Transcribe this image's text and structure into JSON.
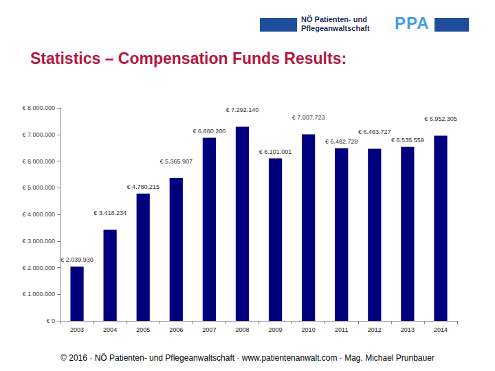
{
  "header": {
    "logo_text": [
      "NÖ Patienten- und",
      "Pflegeanwaltschaft"
    ],
    "logo_mark": "PPA"
  },
  "title": "Statistics – Compensation Funds Results:",
  "footer": "© 2016 · NÖ Patienten- und Pflegeanwaltschaft · www.patientenanwalt.com · Mag. Michael Prunbauer",
  "chart_data": {
    "type": "bar",
    "categories": [
      "2003",
      "2004",
      "2005",
      "2006",
      "2007",
      "2008",
      "2009",
      "2010",
      "2011",
      "2012",
      "2013",
      "2014"
    ],
    "values": [
      2039930,
      3418234,
      4780215,
      5365907,
      6880200,
      7292140,
      6101001,
      7007723,
      6482728,
      6463727,
      6535559,
      6952305
    ],
    "value_labels": [
      "€ 2.039.930",
      "€ 3.418.234",
      "€ 4.780.215",
      "€ 5.365.907",
      "€ 6.880.200",
      "€ 7.292.140",
      "€ 6.101.001",
      "€ 7.007.723",
      "€ 6.482.728",
      "€ 6.463.727",
      "€ 6.535.559",
      "€ 6.952.305"
    ],
    "color": "#00007f",
    "ylim": [
      0,
      8000000
    ],
    "yticks": [
      {
        "value": 0,
        "label": "€ 0"
      },
      {
        "value": 1000000,
        "label": "€ 1.000.000"
      },
      {
        "value": 2000000,
        "label": "€ 2.000.000"
      },
      {
        "value": 3000000,
        "label": "€ 3.000.000"
      },
      {
        "value": 4000000,
        "label": "€ 4.000.000"
      },
      {
        "value": 5000000,
        "label": "€ 5.000.000"
      },
      {
        "value": 6000000,
        "label": "€ 6.000.000"
      },
      {
        "value": 7000000,
        "label": "€ 7.000.000"
      },
      {
        "value": 8000000,
        "label": "€ 8.000.000"
      }
    ],
    "grid": false,
    "data_labels": true
  }
}
